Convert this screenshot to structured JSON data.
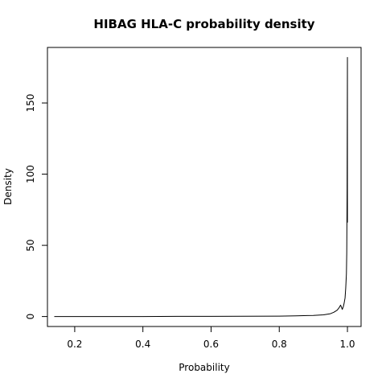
{
  "chart_data": {
    "type": "line",
    "title": "HIBAG HLA-C probability density",
    "xlabel": "Probability",
    "ylabel": "Density",
    "xlim": [
      0.12,
      1.04
    ],
    "ylim": [
      -7,
      189
    ],
    "x_ticks": [
      0.2,
      0.4,
      0.6,
      0.8,
      1.0
    ],
    "x_tick_labels": [
      "0.2",
      "0.4",
      "0.6",
      "0.8",
      "1.0"
    ],
    "y_ticks": [
      0,
      50,
      100,
      150
    ],
    "y_tick_labels": [
      "0",
      "50",
      "100",
      "150"
    ],
    "grid": false,
    "legend": "none",
    "series": [
      {
        "color": "#000000",
        "x": [
          0.14,
          0.2,
          0.3,
          0.4,
          0.5,
          0.6,
          0.7,
          0.8,
          0.85,
          0.9,
          0.93,
          0.95,
          0.96,
          0.97,
          0.975,
          0.98,
          0.985,
          0.988,
          0.99,
          0.993,
          0.995,
          0.997,
          0.998,
          0.999,
          1.0,
          1.0
        ],
        "y": [
          0,
          0,
          0,
          0,
          0.1,
          0.1,
          0.2,
          0.3,
          0.5,
          0.8,
          1.2,
          2,
          3,
          4.5,
          6,
          8,
          5,
          7,
          9,
          13,
          20,
          30,
          45,
          90,
          182,
          66
        ]
      }
    ]
  }
}
